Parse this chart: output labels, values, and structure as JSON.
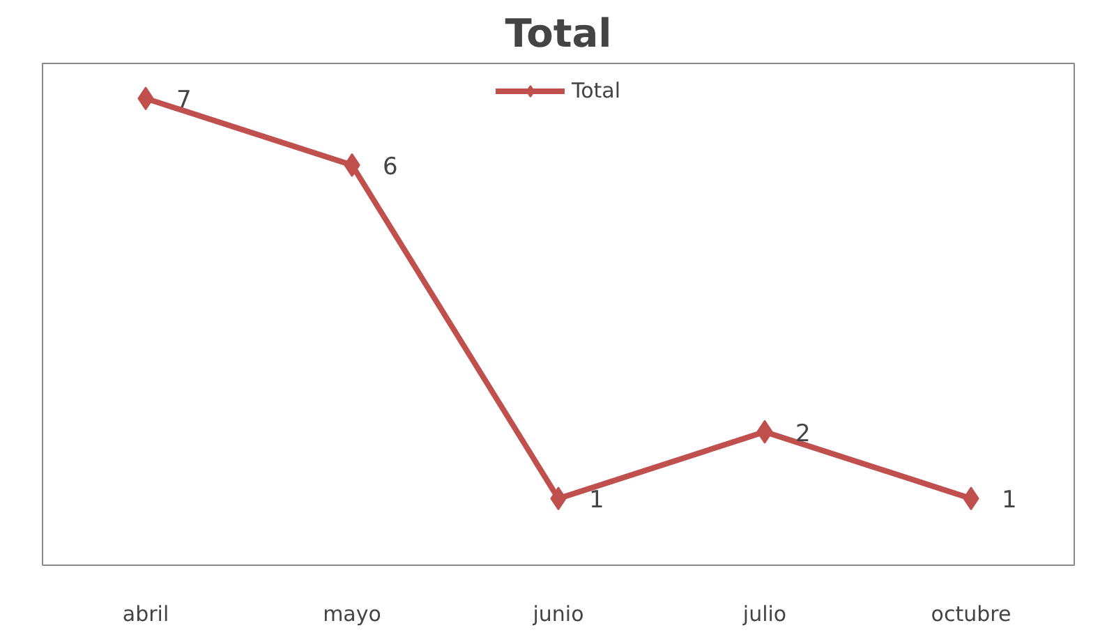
{
  "chart_data": {
    "type": "line",
    "title": "Total",
    "categories": [
      "abril",
      "mayo",
      "junio",
      "julio",
      "octubre"
    ],
    "series": [
      {
        "name": "Total",
        "color": "#c0504d",
        "values": [
          7,
          6,
          1,
          2,
          1
        ]
      }
    ],
    "data_labels": true,
    "marker": "diamond",
    "legend": "top",
    "grid": false
  }
}
